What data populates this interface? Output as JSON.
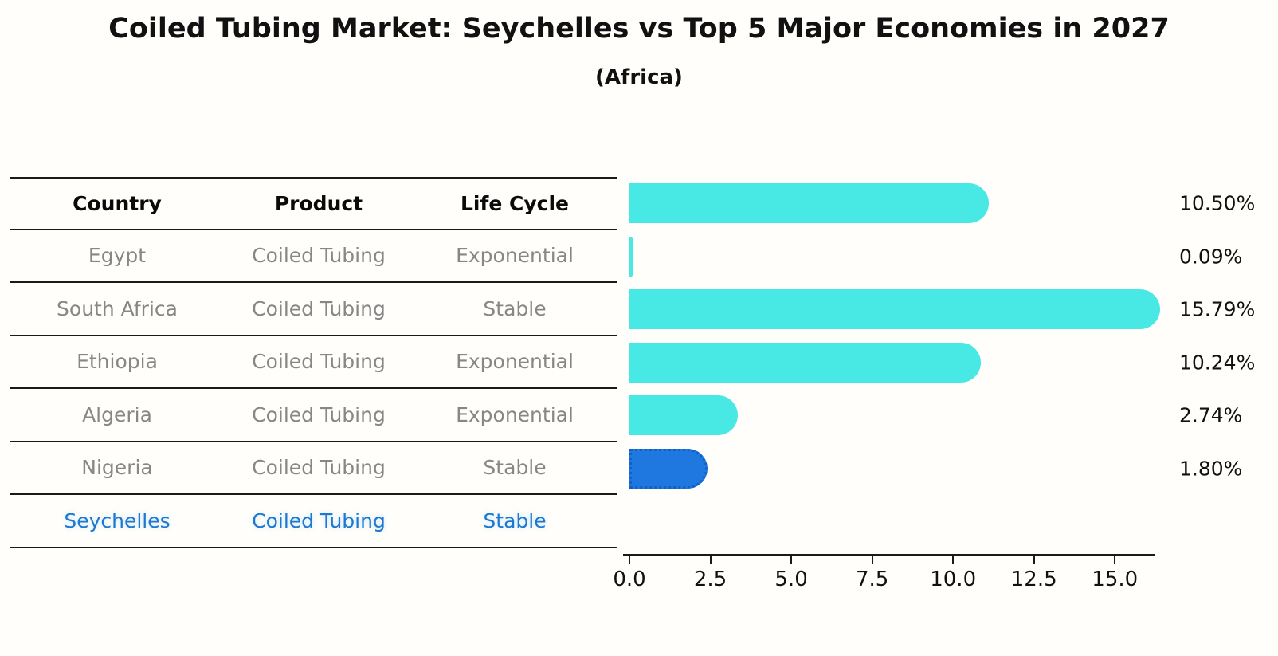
{
  "header": {
    "title": "Coiled Tubing Market: Seychelles vs Top 5 Major Economies in 2027",
    "subtitle": "(Africa)"
  },
  "table": {
    "columns": [
      "Country",
      "Product",
      "Life Cycle"
    ],
    "rows": [
      {
        "country": "Egypt",
        "product": "Coiled Tubing",
        "life_cycle": "Exponential",
        "highlight": false
      },
      {
        "country": "South Africa",
        "product": "Coiled Tubing",
        "life_cycle": "Stable",
        "highlight": false
      },
      {
        "country": "Ethiopia",
        "product": "Coiled Tubing",
        "life_cycle": "Exponential",
        "highlight": false
      },
      {
        "country": "Algeria",
        "product": "Coiled Tubing",
        "life_cycle": "Exponential",
        "highlight": false
      },
      {
        "country": "Nigeria",
        "product": "Coiled Tubing",
        "life_cycle": "Stable",
        "highlight": false
      },
      {
        "country": "Seychelles",
        "product": "Coiled Tubing",
        "life_cycle": "Stable",
        "highlight": true
      }
    ]
  },
  "chart_data": {
    "type": "bar",
    "orientation": "horizontal",
    "title": "Coiled Tubing Market: Seychelles vs Top 5 Major Economies in 2027",
    "subtitle": "(Africa)",
    "categories": [
      "Egypt",
      "South Africa",
      "Ethiopia",
      "Algeria",
      "Nigeria",
      "Seychelles"
    ],
    "values": [
      10.5,
      0.09,
      15.79,
      10.24,
      2.74,
      1.8
    ],
    "value_labels": [
      "10.50%",
      "0.09%",
      "15.79%",
      "10.24%",
      "2.74%",
      "1.80%"
    ],
    "highlight_index": 5,
    "x_ticks": [
      0.0,
      2.5,
      5.0,
      7.5,
      10.0,
      12.5,
      15.0
    ],
    "x_tick_labels": [
      "0.0",
      "2.5",
      "5.0",
      "7.5",
      "10.0",
      "12.5",
      "15.0"
    ],
    "xlim": [
      0,
      16.2
    ],
    "grid": false,
    "legend": false,
    "bar_color": "#48e8e4",
    "highlight_bar_color": "#1e78e0",
    "highlight_text_color": "#1e78d0",
    "row_text_color": "#878787"
  }
}
